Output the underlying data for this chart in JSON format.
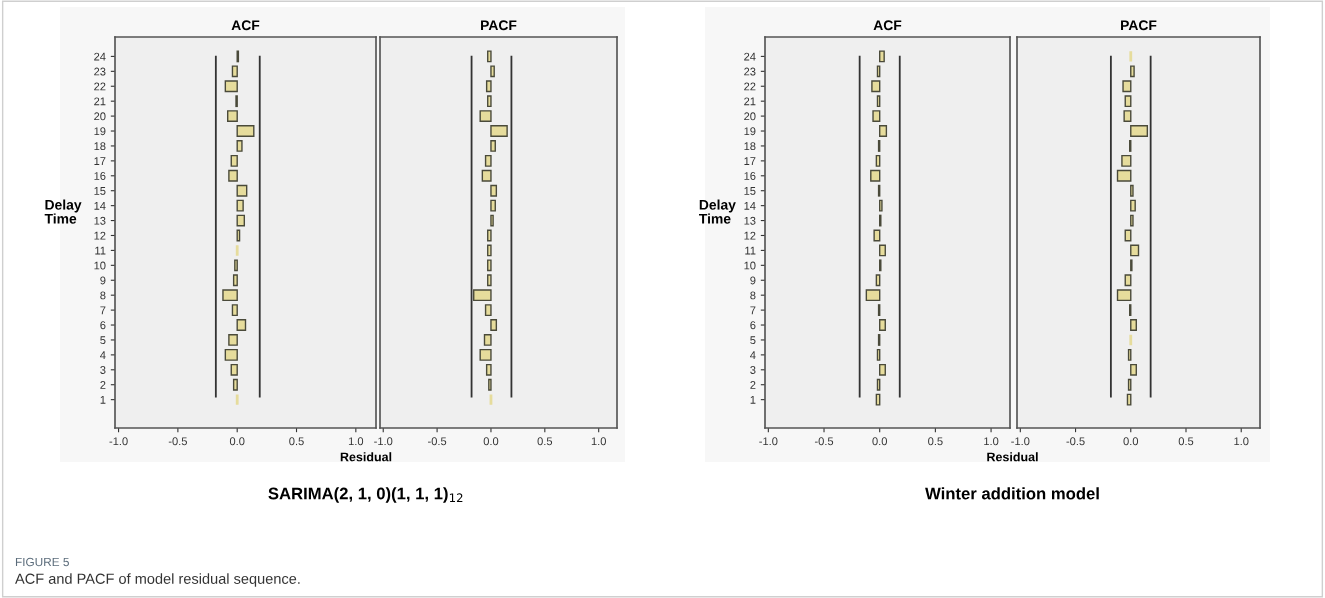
{
  "chart_data": [
    {
      "type": "bar",
      "orientation": "horizontal",
      "title": "ACF",
      "ylabel": "Delay Time",
      "xlabel": "Residual",
      "color": "#e6dc9c",
      "categories": [
        "24",
        "23",
        "22",
        "21",
        "20",
        "19",
        "18",
        "17",
        "16",
        "15",
        "14",
        "13",
        "12",
        "11",
        "10",
        "9",
        "8",
        "7",
        "6",
        "5",
        "4",
        "3",
        "2",
        "1"
      ],
      "values": [
        0.01,
        -0.04,
        -0.1,
        -0.01,
        -0.08,
        0.14,
        0.04,
        -0.05,
        -0.07,
        0.08,
        0.05,
        0.06,
        0.02,
        0.0,
        -0.02,
        -0.03,
        -0.12,
        -0.04,
        0.07,
        -0.07,
        -0.1,
        -0.05,
        -0.03,
        0.0
      ],
      "xlim": [
        -1.03,
        1.17
      ],
      "xticks": [
        {
          "value": -1.0,
          "label": "-1.0"
        },
        {
          "value": -0.5,
          "label": "-0.5"
        },
        {
          "value": 0.0,
          "label": "0.0"
        },
        {
          "value": 0.5,
          "label": "0.5"
        },
        {
          "value": 1.0,
          "label": "1.0"
        }
      ],
      "ref_lines": [
        {
          "axis": "x",
          "value": -0.18,
          "color": "#333333"
        },
        {
          "axis": "x",
          "value": 0.19,
          "color": "#333333"
        }
      ],
      "annotations": [
        "SARIMA(2, 1, 0)(1, 1, 1)$_{12}$",
        "FIGURE 5",
        "ACF and PACF of model residual sequence."
      ]
    },
    {
      "type": "bar",
      "orientation": "horizontal",
      "title": "PACF",
      "color": "#e6dc9c",
      "tick_labels": "x",
      "categories": [
        "24",
        "23",
        "22",
        "21",
        "20",
        "19",
        "18",
        "17",
        "16",
        "15",
        "14",
        "13",
        "12",
        "11",
        "10",
        "9",
        "8",
        "7",
        "6",
        "5",
        "4",
        "3",
        "2",
        "1"
      ],
      "values": [
        -0.03,
        0.03,
        -0.04,
        -0.03,
        -0.1,
        0.15,
        0.04,
        -0.05,
        -0.08,
        0.05,
        0.04,
        0.02,
        -0.03,
        -0.03,
        -0.03,
        -0.03,
        -0.16,
        -0.05,
        0.05,
        -0.06,
        -0.1,
        -0.04,
        -0.02,
        0.0
      ],
      "xlim": [
        -1.03,
        1.17
      ],
      "xticks": [
        {
          "value": -1.0,
          "label": "-1.0"
        },
        {
          "value": -0.5,
          "label": "-0.5"
        },
        {
          "value": 0.0,
          "label": "0.0"
        },
        {
          "value": 0.5,
          "label": "0.5"
        },
        {
          "value": 1.0,
          "label": "1.0"
        }
      ],
      "ref_lines": [
        {
          "axis": "x",
          "value": -0.18,
          "color": "#333333"
        },
        {
          "axis": "x",
          "value": 0.19,
          "color": "#333333"
        }
      ]
    },
    {
      "type": "bar",
      "orientation": "horizontal",
      "title": "ACF",
      "ylabel": "Delay Time",
      "xlabel": "Residual",
      "color": "#e6dc9c",
      "categories": [
        "24",
        "23",
        "22",
        "21",
        "20",
        "19",
        "18",
        "17",
        "16",
        "15",
        "14",
        "13",
        "12",
        "11",
        "10",
        "9",
        "8",
        "7",
        "6",
        "5",
        "4",
        "3",
        "2",
        "1"
      ],
      "values": [
        0.04,
        -0.02,
        -0.07,
        -0.02,
        -0.06,
        0.06,
        -0.01,
        -0.03,
        -0.08,
        -0.01,
        0.02,
        0.01,
        -0.05,
        0.05,
        0.01,
        -0.03,
        -0.12,
        -0.01,
        0.05,
        -0.01,
        -0.02,
        0.05,
        -0.02,
        -0.03
      ],
      "xlim": [
        -1.03,
        1.17
      ],
      "xticks": [
        {
          "value": -1.0,
          "label": "-1.0"
        },
        {
          "value": -0.5,
          "label": "-0.5"
        },
        {
          "value": 0.0,
          "label": "0.0"
        },
        {
          "value": 0.5,
          "label": "0.5"
        },
        {
          "value": 1.0,
          "label": "1.0"
        }
      ],
      "ref_lines": [
        {
          "axis": "x",
          "value": -0.18,
          "color": "#333333"
        },
        {
          "axis": "x",
          "value": 0.18,
          "color": "#333333"
        }
      ],
      "annotations": [
        "Winter addition model"
      ]
    },
    {
      "type": "bar",
      "orientation": "horizontal",
      "title": "PACF",
      "color": "#e6dc9c",
      "tick_labels": "x",
      "categories": [
        "24",
        "23",
        "22",
        "21",
        "20",
        "19",
        "18",
        "17",
        "16",
        "15",
        "14",
        "13",
        "12",
        "11",
        "10",
        "9",
        "8",
        "7",
        "6",
        "5",
        "4",
        "3",
        "2",
        "1"
      ],
      "values": [
        0.0,
        0.03,
        -0.07,
        -0.05,
        -0.06,
        0.15,
        -0.01,
        -0.08,
        -0.12,
        0.02,
        0.04,
        0.02,
        -0.05,
        0.07,
        0.01,
        -0.05,
        -0.12,
        -0.01,
        0.05,
        0.0,
        -0.02,
        0.05,
        -0.02,
        -0.03
      ],
      "xlim": [
        -1.03,
        1.17
      ],
      "xticks": [
        {
          "value": -1.0,
          "label": "-1.0"
        },
        {
          "value": -0.5,
          "label": "-0.5"
        },
        {
          "value": 0.0,
          "label": "0.0"
        },
        {
          "value": 0.5,
          "label": "0.5"
        },
        {
          "value": 1.0,
          "label": "1.0"
        }
      ],
      "ref_lines": [
        {
          "axis": "x",
          "value": -0.18,
          "color": "#333333"
        },
        {
          "axis": "x",
          "value": 0.18,
          "color": "#333333"
        }
      ]
    }
  ]
}
